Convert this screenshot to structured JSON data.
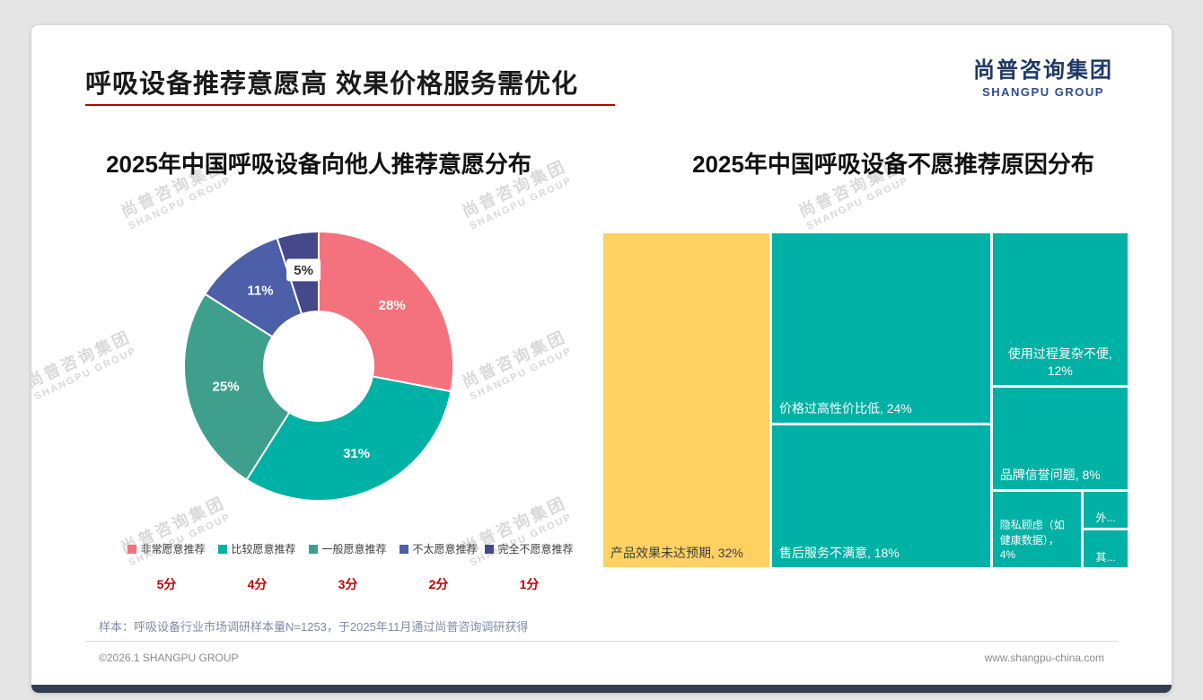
{
  "slide": {
    "title": "呼吸设备推荐意愿高 效果价格服务需优化",
    "logo": {
      "cn": "尚普咨询集团",
      "en": "SHANGPU GROUP"
    },
    "watermark": {
      "cn": "尚普咨询集团",
      "en": "SHANGPU GROUP"
    },
    "sample_note": "样本：呼吸设备行业市场调研样本量N=1253，于2025年11月通过尚普咨询调研获得",
    "footer": {
      "left": "©2026.1 SHANGPU GROUP",
      "right": "www.shangpu-china.com"
    },
    "accent_red": "#C00000",
    "bottom_bar_color": "#333F50"
  },
  "chart_data": [
    {
      "type": "pie",
      "subtype": "donut",
      "title": "2025年中国呼吸设备向他人推荐意愿分布",
      "categories": [
        "非常愿意推荐",
        "比较愿意推荐",
        "一般愿意推荐",
        "不太愿意推荐",
        "完全不愿意推荐"
      ],
      "values": [
        28,
        31,
        25,
        11,
        5
      ],
      "value_labels": [
        "28%",
        "31%",
        "25%",
        "11%",
        "5%"
      ],
      "score_labels": [
        "5分",
        "4分",
        "3分",
        "2分",
        "1分"
      ],
      "colors": [
        "#F4727D",
        "#00B1A5",
        "#3F9F8D",
        "#4C5FA8",
        "#45498A"
      ],
      "start_angle_deg": 0,
      "direction": "clockwise",
      "inner_radius_ratio": 0.41,
      "legend_position": "bottom"
    },
    {
      "type": "treemap",
      "title": "2025年中国呼吸设备不愿推荐原因分布",
      "items": [
        {
          "label": "产品效果未达预期",
          "value": 32,
          "display": "产品效果未达预期, 32%",
          "color": "#FFD160",
          "text_color": "#3F3F3F"
        },
        {
          "label": "价格过高性价比低",
          "value": 24,
          "display": "价格过高性价比低, 24%",
          "color": "#00B1A5",
          "text_color": "#FFFFFF"
        },
        {
          "label": "售后服务不满意",
          "value": 18,
          "display": "售后服务不满意, 18%",
          "color": "#00B1A5",
          "text_color": "#FFFFFF"
        },
        {
          "label": "使用过程复杂不便",
          "value": 12,
          "display": "使用过程复杂不便, 12%",
          "color": "#00B1A5",
          "text_color": "#FFFFFF"
        },
        {
          "label": "品牌信誉问题",
          "value": 8,
          "display": "品牌信誉问题, 8%",
          "color": "#00B1A5",
          "text_color": "#FFFFFF"
        },
        {
          "label": "隐私顾虑（如健康数据）",
          "value": 4,
          "display": "隐私顾虑（如健康数据），4%",
          "color": "#00B1A5",
          "text_color": "#FFFFFF"
        },
        {
          "label": "外...",
          "value": 1,
          "display": "外...",
          "color": "#00B1A5",
          "text_color": "#FFFFFF"
        },
        {
          "label": "其...",
          "value": 1,
          "display": "其...",
          "color": "#00B1A5",
          "text_color": "#FFFFFF"
        }
      ]
    }
  ]
}
